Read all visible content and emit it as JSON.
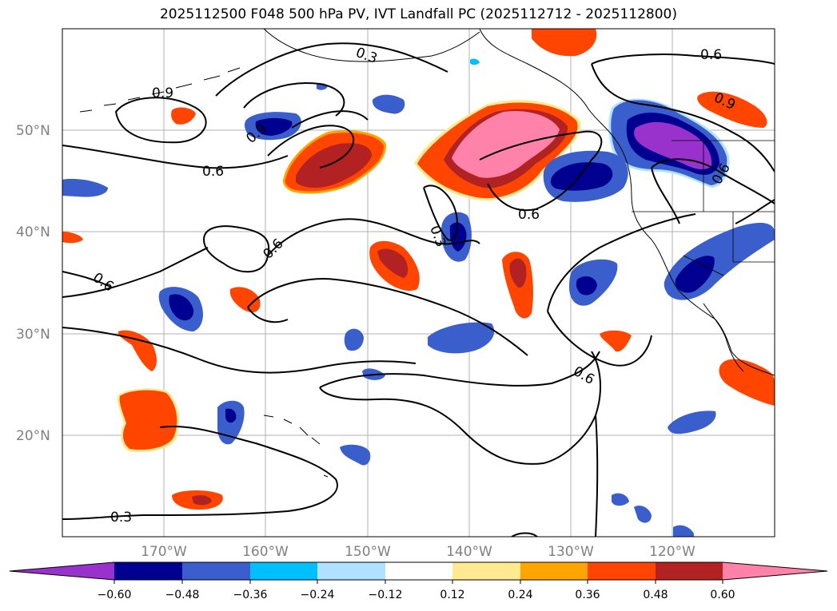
{
  "title": "2025112500 F048 500 hPa PV, IVT Landfall PC (2025112712 - 2025112800)",
  "axes": {
    "lat_labels": [
      "50°N",
      "40°N",
      "30°N",
      "20°N"
    ],
    "lon_labels": [
      "170°W",
      "160°W",
      "150°W",
      "140°W",
      "130°W",
      "120°W"
    ]
  },
  "contour_labels": [
    "0.9",
    "0.3",
    "0.6",
    "0.6",
    "0.9",
    "0.6",
    "0.3",
    "0.6",
    "0.6",
    "0.6",
    "0.3",
    "0.9",
    "0.6"
  ],
  "colorbar": {
    "ticks": [
      "−0.60",
      "−0.48",
      "−0.36",
      "−0.24",
      "−0.12",
      "0.12",
      "0.24",
      "0.36",
      "0.48",
      "0.60"
    ],
    "colors": [
      "#9932cc",
      "#000090",
      "#3a5fcd",
      "#00bfff",
      "#b0e2ff",
      "#ffffff",
      "#ffe991",
      "#ffa500",
      "#ff4500",
      "#b22222",
      "#ff82ab"
    ]
  }
}
